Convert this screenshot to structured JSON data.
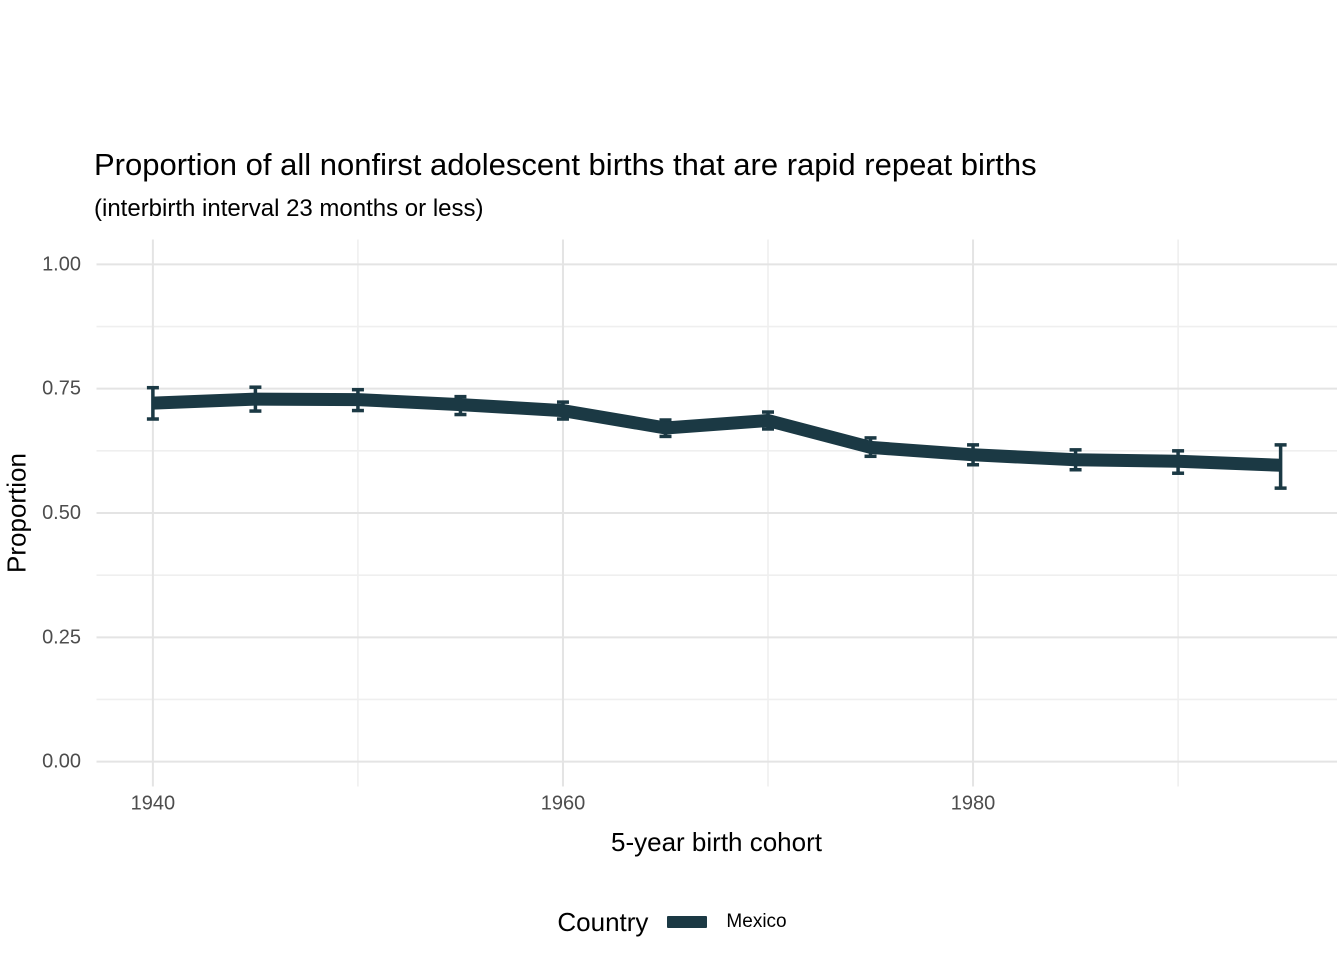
{
  "chart_data": {
    "type": "line",
    "title": "Proportion of all nonfirst adolescent births that are rapid repeat births",
    "subtitle": "(interbirth interval 23 months or less)",
    "xlabel": "5-year birth cohort",
    "ylabel": "Proportion",
    "legend": {
      "title": "Country",
      "position": "bottom",
      "entries": [
        {
          "label": "Mexico",
          "color": "#1b3944"
        }
      ]
    },
    "x": [
      1940,
      1945,
      1950,
      1955,
      1960,
      1965,
      1970,
      1975,
      1980,
      1985,
      1990,
      1995
    ],
    "series": [
      {
        "name": "Mexico",
        "color": "#1b3944",
        "values": [
          0.721,
          0.729,
          0.728,
          0.718,
          0.706,
          0.671,
          0.686,
          0.632,
          0.617,
          0.607,
          0.604,
          0.596
        ],
        "ci_low": [
          0.689,
          0.705,
          0.706,
          0.698,
          0.689,
          0.654,
          0.669,
          0.614,
          0.597,
          0.587,
          0.58,
          0.55
        ],
        "ci_high": [
          0.752,
          0.753,
          0.748,
          0.734,
          0.723,
          0.687,
          0.703,
          0.651,
          0.637,
          0.627,
          0.625,
          0.637
        ]
      }
    ],
    "xlim": [
      1937.25,
      1997.75
    ],
    "ylim": [
      -0.05,
      1.05
    ],
    "xticks": {
      "major": [
        1940,
        1960,
        1980
      ],
      "minor": [
        1950,
        1970,
        1990
      ]
    },
    "yticks": {
      "major": [
        0,
        0.25,
        0.5,
        0.75,
        1.0
      ],
      "major_labels": [
        "0.00",
        "0.25",
        "0.50",
        "0.75",
        "1.00"
      ],
      "minor": [
        0.125,
        0.375,
        0.625,
        0.875
      ]
    },
    "grid": {
      "major_color": "#e4e4e4",
      "minor_color": "#efefef",
      "background": "#ffffff"
    },
    "error_bars": true
  }
}
